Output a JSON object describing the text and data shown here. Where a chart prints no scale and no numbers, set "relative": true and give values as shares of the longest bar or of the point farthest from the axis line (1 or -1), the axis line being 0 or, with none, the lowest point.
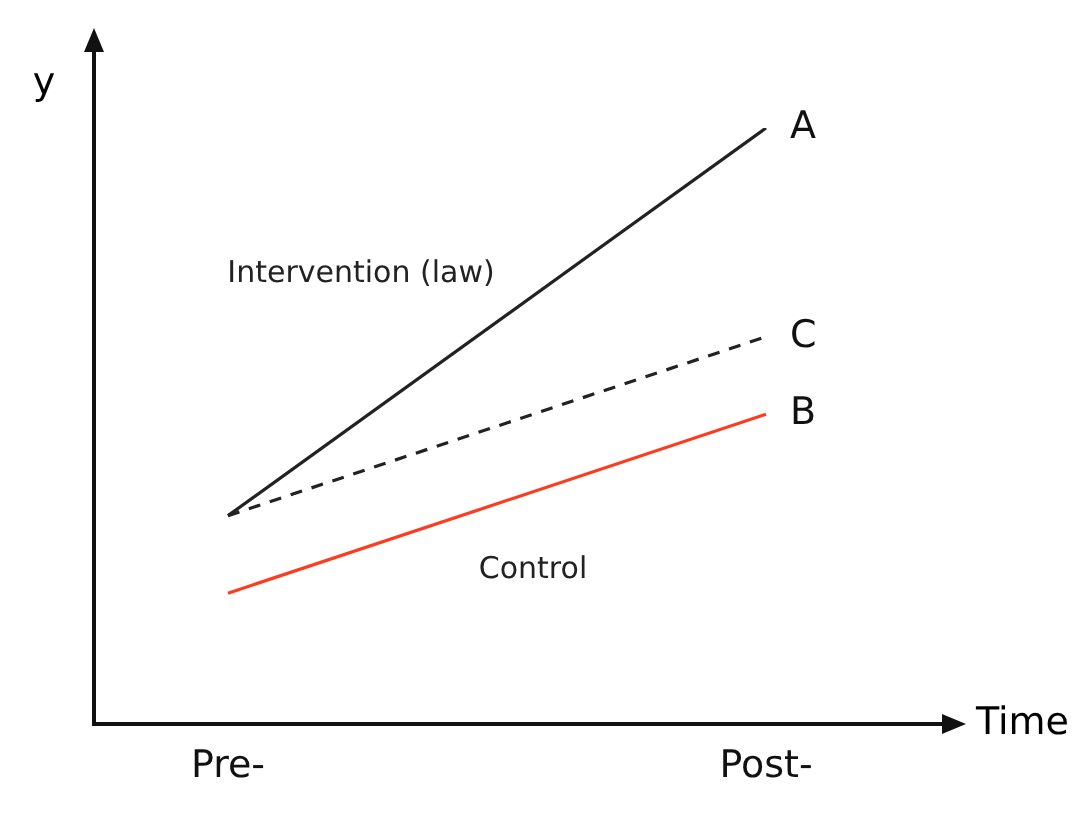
{
  "chart_data": {
    "type": "line",
    "relative": true,
    "xlabel": "Time",
    "ylabel": "y",
    "categories": [
      "Pre-",
      "Post-"
    ],
    "legend": false,
    "grid": false,
    "marker": "none",
    "series": [
      {
        "name": "Intervention (law)",
        "color": "#222222",
        "values": [
          0.35,
          1
        ]
      },
      {
        "color": "#222222",
        "line_style": "dashed",
        "values": [
          0.35,
          0.65
        ]
      },
      {
        "name": "Control",
        "color": "#ff3b1f",
        "values": [
          0.22,
          0.52
        ]
      }
    ],
    "annotations": [
      {
        "text": "A",
        "x": "Post-",
        "y": 1
      },
      {
        "text": "C",
        "x": "Post-",
        "y": 0.65
      },
      {
        "text": "B",
        "x": "Post-",
        "y": 0.52
      }
    ]
  }
}
